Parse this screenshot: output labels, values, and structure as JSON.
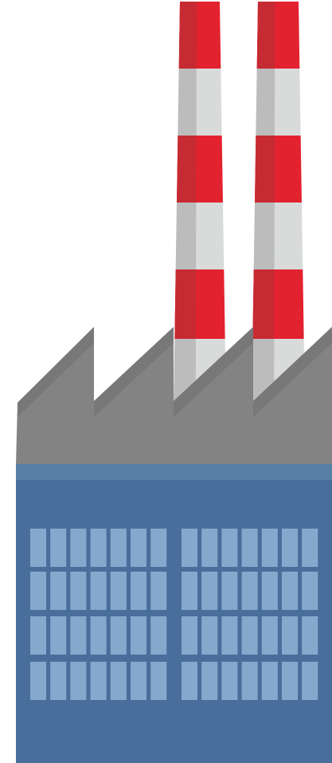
{
  "illustration": {
    "subject": "factory",
    "chimney_count": 2,
    "colors": {
      "background": "#ffffff",
      "chimney_red": "#e3222f",
      "chimney_red_shade": "#c62a33",
      "chimney_white": "#d9dbdb",
      "chimney_white_shade": "#bcbcbc",
      "roof": "#838383",
      "roof_shade": "#6f6f6f",
      "wall": "#4a6e9b",
      "wall_trim": "#5880a7",
      "window": "#85a9cd"
    },
    "window_grid": {
      "columns_per_block": 7,
      "rows": 4,
      "blocks": 2
    }
  }
}
